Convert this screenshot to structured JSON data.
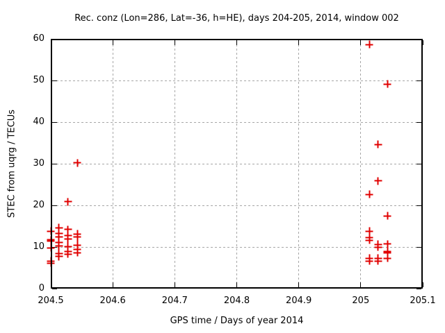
{
  "colors": {
    "marker": "#e00000",
    "grid": "#a6a6a6",
    "frame": "#000000",
    "background": "#ffffff",
    "text": "#000000"
  },
  "chart_data": {
    "type": "scatter",
    "title": "Rec. conz (Lon=286, Lat=-36, h=HE), days 204-205, 2014, window 002",
    "xlabel": "GPS time / Days of year 2014",
    "ylabel": "STEC from uqrg / TECUs",
    "xlim": [
      204.5,
      205.1
    ],
    "ylim": [
      0,
      60
    ],
    "xticks": [
      204.5,
      204.6,
      204.7,
      204.8,
      204.9,
      205.0,
      205.1
    ],
    "xtick_labels": [
      "204.5",
      "204.6",
      "204.7",
      "204.8",
      "204.9",
      "205",
      "205.1"
    ],
    "yticks": [
      0,
      10,
      20,
      30,
      40,
      50,
      60
    ],
    "ytick_labels": [
      "0",
      "10",
      "20",
      "30",
      "40",
      "50",
      "60"
    ],
    "grid": true,
    "legend": "none",
    "marker": {
      "shape": "plus",
      "size": 11,
      "stroke": 2
    },
    "series": [
      {
        "name": "STEC from uqrg",
        "points": [
          [
            204.5,
            13.8
          ],
          [
            204.5,
            11.7
          ],
          [
            204.5,
            11.4
          ],
          [
            204.5,
            9.8
          ],
          [
            204.5,
            6.6
          ],
          [
            204.5,
            6.1
          ],
          [
            204.513,
            14.6
          ],
          [
            204.513,
            13.2
          ],
          [
            204.513,
            12.4
          ],
          [
            204.513,
            11.1
          ],
          [
            204.513,
            10.2
          ],
          [
            204.513,
            8.4
          ],
          [
            204.513,
            7.7
          ],
          [
            204.528,
            20.9
          ],
          [
            204.528,
            14.2
          ],
          [
            204.528,
            12.8
          ],
          [
            204.528,
            12.0
          ],
          [
            204.528,
            10.1
          ],
          [
            204.528,
            9.0
          ],
          [
            204.528,
            8.3
          ],
          [
            204.543,
            30.2
          ],
          [
            204.543,
            13.1
          ],
          [
            204.543,
            12.4
          ],
          [
            204.543,
            10.5
          ],
          [
            204.543,
            9.5
          ],
          [
            204.543,
            8.6
          ],
          [
            205.014,
            58.6
          ],
          [
            205.014,
            22.6
          ],
          [
            205.014,
            13.8
          ],
          [
            205.014,
            12.3
          ],
          [
            205.014,
            11.6
          ],
          [
            205.014,
            7.3
          ],
          [
            205.014,
            6.6
          ],
          [
            205.028,
            34.6
          ],
          [
            205.028,
            25.9
          ],
          [
            205.028,
            10.6
          ],
          [
            205.028,
            10.0
          ],
          [
            205.028,
            7.3
          ],
          [
            205.028,
            6.6
          ],
          [
            205.043,
            49.1
          ],
          [
            205.043,
            17.5
          ],
          [
            205.043,
            10.7
          ],
          [
            205.043,
            8.9
          ],
          [
            205.043,
            8.6
          ],
          [
            205.043,
            7.3
          ]
        ]
      }
    ]
  }
}
